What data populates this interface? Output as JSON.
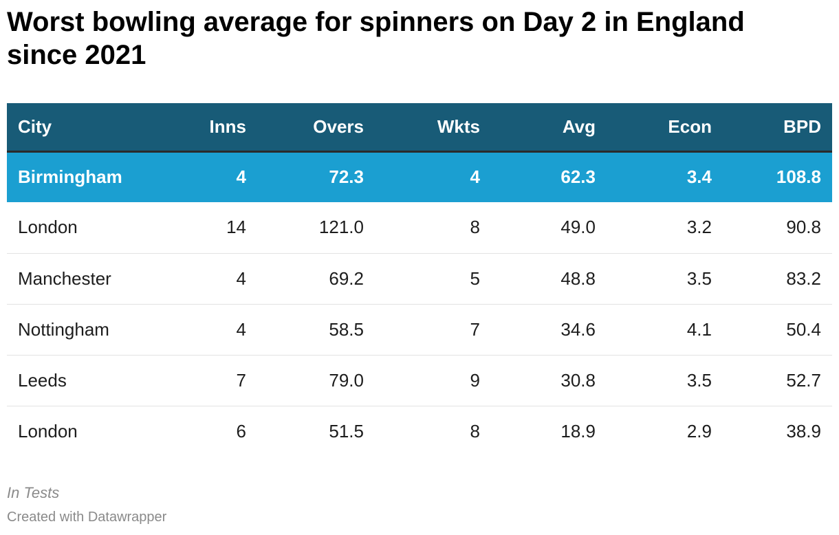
{
  "chart_data": {
    "type": "table",
    "title": "Worst bowling average for spinners on Day 2 in England since 2021",
    "columns": [
      "City",
      "Inns",
      "Overs",
      "Wkts",
      "Avg",
      "Econ",
      "BPD"
    ],
    "rows": [
      [
        "Birmingham",
        "4",
        "72.3",
        "4",
        "62.3",
        "3.4",
        "108.8"
      ],
      [
        "London",
        "14",
        "121.0",
        "8",
        "49.0",
        "3.2",
        "90.8"
      ],
      [
        "Manchester",
        "4",
        "69.2",
        "5",
        "48.8",
        "3.5",
        "83.2"
      ],
      [
        "Nottingham",
        "4",
        "58.5",
        "7",
        "34.6",
        "4.1",
        "50.4"
      ],
      [
        "Leeds",
        "7",
        "79.0",
        "9",
        "30.8",
        "3.5",
        "52.7"
      ],
      [
        "London",
        "6",
        "51.5",
        "8",
        "18.9",
        "2.9",
        "38.9"
      ]
    ],
    "highlighted_row": 0,
    "notes": "In Tests",
    "credit": "Created with Datawrapper"
  },
  "colors": {
    "header_bg": "#185b77",
    "highlight_bg": "#1b9fd1",
    "header_text": "#ffffff",
    "body_text": "#1d1d1d",
    "footer_text": "#8a8a8a"
  }
}
